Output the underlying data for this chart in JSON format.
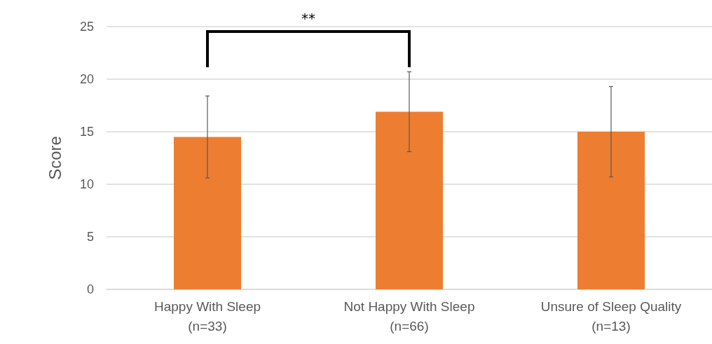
{
  "chart_data": {
    "type": "bar",
    "ylabel": "Score",
    "categories": [
      "Happy With Sleep\n(n=33)",
      "Not Happy With Sleep\n(n=66)",
      "Unsure of Sleep Quality\n(n=13)"
    ],
    "values": [
      14.5,
      16.9,
      15.0
    ],
    "errors": [
      [
        10.6,
        18.4
      ],
      [
        13.1,
        20.7
      ],
      [
        10.7,
        19.3
      ]
    ],
    "color": "#ed7d31",
    "ylim": [
      0,
      25
    ],
    "yticks": [
      0,
      5,
      10,
      15,
      20,
      25
    ],
    "grid": "y",
    "annotations": [
      "**"
    ]
  }
}
